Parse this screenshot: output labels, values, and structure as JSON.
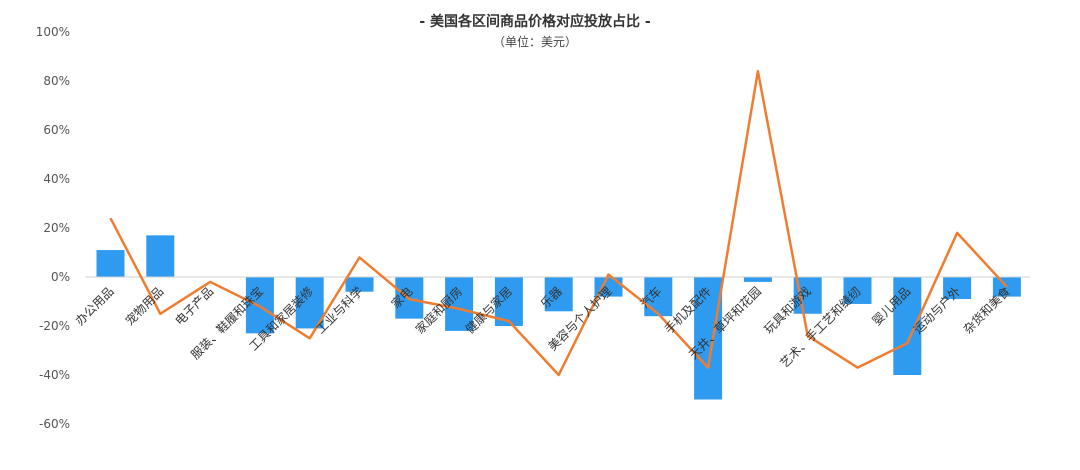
{
  "chart_data": {
    "type": "bar",
    "title": "- 美国各区间商品价格对应投放占比 -",
    "subtitle": "（单位：美元）",
    "xlabel": "",
    "ylabel": "",
    "ylim": [
      -60,
      100
    ],
    "yticks": [
      "100%",
      "80%",
      "60%",
      "40%",
      "20%",
      "0%",
      "-20%",
      "-40%",
      "-60%"
    ],
    "grid": false,
    "legend": "none",
    "categories": [
      "办公用品",
      "宠物用品",
      "电子产品",
      "服装、鞋履和珠宝",
      "工具和家居装修",
      "工业与科学",
      "家电",
      "家庭和厨房",
      "健康与家居",
      "乐器",
      "美容与个人护理",
      "汽车",
      "手机及配件",
      "天井、草坪和花园",
      "玩具和游戏",
      "艺术、手工艺和缝纫",
      "婴儿用品",
      "运动与户外",
      "杂货和美食"
    ],
    "series": [
      {
        "type": "bar",
        "color": "#2e9bf0",
        "values": [
          11,
          17,
          0,
          -23,
          -21,
          -6,
          -17,
          -22,
          -20,
          -14,
          -8,
          -16,
          -50,
          -2,
          -15,
          -11,
          -40,
          -9,
          -8
        ]
      },
      {
        "type": "line",
        "color": "#ee7d31",
        "values": [
          24,
          -15,
          -2,
          -12,
          -25,
          8,
          -9,
          -13,
          -18,
          -40,
          1,
          -15,
          -37,
          84,
          -24,
          -37,
          -27,
          18,
          -4
        ]
      }
    ]
  }
}
